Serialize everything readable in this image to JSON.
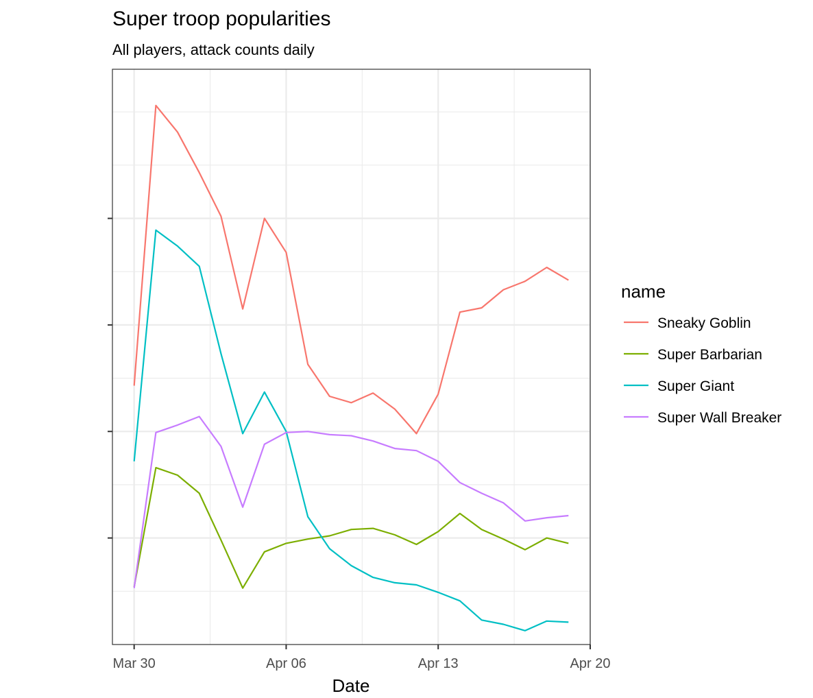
{
  "chart_data": {
    "type": "line",
    "title": "Super troop popularities",
    "subtitle": "All players, attack counts daily",
    "xlabel": "Date",
    "ylabel": "",
    "x_ticks": [
      "Mar 30",
      "Apr 06",
      "Apr 13",
      "Apr 20"
    ],
    "x_tick_dates": [
      "2020-03-30",
      "2020-04-06",
      "2020-04-13",
      "2020-04-20"
    ],
    "xlim": [
      "2020-03-29",
      "2020-04-20"
    ],
    "ylim": [
      0,
      5.4
    ],
    "y_ticks_labeled": false,
    "grid": true,
    "legend_title": "name",
    "legend_position": "right",
    "x": [
      "2020-03-30",
      "2020-03-31",
      "2020-04-01",
      "2020-04-02",
      "2020-04-03",
      "2020-04-04",
      "2020-04-05",
      "2020-04-06",
      "2020-04-07",
      "2020-04-08",
      "2020-04-09",
      "2020-04-10",
      "2020-04-11",
      "2020-04-12",
      "2020-04-13",
      "2020-04-14",
      "2020-04-15",
      "2020-04-16",
      "2020-04-17",
      "2020-04-18",
      "2020-04-19"
    ],
    "series": [
      {
        "name": "Sneaky Goblin",
        "color": "#F8766D",
        "values": [
          2.43,
          5.06,
          4.81,
          4.43,
          4.02,
          3.15,
          4.0,
          3.68,
          2.63,
          2.33,
          2.27,
          2.36,
          2.21,
          1.98,
          2.35,
          3.12,
          3.16,
          3.33,
          3.41,
          3.54,
          3.42
        ]
      },
      {
        "name": "Super Barbarian",
        "color": "#7CAE00",
        "values": [
          0.54,
          1.66,
          1.59,
          1.42,
          0.98,
          0.53,
          0.87,
          0.95,
          0.99,
          1.02,
          1.08,
          1.09,
          1.03,
          0.94,
          1.06,
          1.23,
          1.08,
          0.99,
          0.89,
          1.0,
          0.95
        ]
      },
      {
        "name": "Super Giant",
        "color": "#00BFC4",
        "values": [
          1.72,
          3.89,
          3.74,
          3.55,
          2.73,
          1.98,
          2.37,
          2.0,
          1.2,
          0.9,
          0.74,
          0.63,
          0.58,
          0.56,
          0.49,
          0.41,
          0.23,
          0.19,
          0.13,
          0.22,
          0.21
        ]
      },
      {
        "name": "Super Wall Breaker",
        "color": "#C77CFF",
        "values": [
          0.53,
          1.99,
          2.06,
          2.14,
          1.86,
          1.29,
          1.88,
          1.99,
          2.0,
          1.97,
          1.96,
          1.91,
          1.84,
          1.82,
          1.72,
          1.52,
          1.42,
          1.33,
          1.16,
          1.19,
          1.21
        ]
      }
    ]
  }
}
